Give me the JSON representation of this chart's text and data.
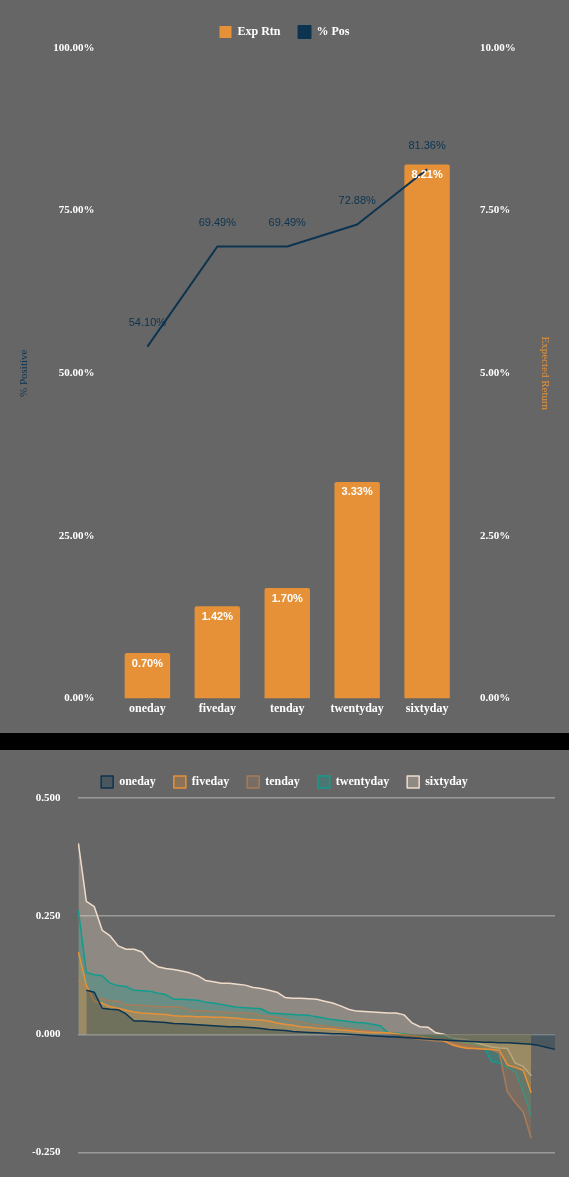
{
  "chart_data": [
    {
      "type": "bar",
      "categories": [
        "oneday",
        "fiveday",
        "tenday",
        "twentyday",
        "sixtyday"
      ],
      "series": [
        {
          "name": "Exp Rtn",
          "axis": "y2",
          "color": "#e69138",
          "values": [
            0.7,
            1.42,
            1.7,
            3.33,
            8.21
          ],
          "value_labels": [
            "0.70%",
            "1.42%",
            "1.70%",
            "3.33%",
            "8.21%"
          ]
        },
        {
          "name": "% Pos",
          "type": "line",
          "axis": "y",
          "color": "#0c3450",
          "values": [
            54.1,
            69.49,
            69.49,
            72.88,
            81.36
          ],
          "value_labels": [
            "54.10%",
            "69.49%",
            "69.49%",
            "72.88%",
            "81.36%"
          ]
        }
      ],
      "ylabel": "% Positive",
      "y2label": "Expected Return",
      "ylim": [
        0,
        100
      ],
      "yticks": [
        {
          "value": 0,
          "label": "0.00%"
        },
        {
          "value": 25,
          "label": "25.00%"
        },
        {
          "value": 50,
          "label": "50.00%"
        },
        {
          "value": 75,
          "label": "75.00%"
        },
        {
          "value": 100,
          "label": "100.00%"
        }
      ],
      "y2lim": [
        0,
        10
      ],
      "y2ticks": [
        {
          "value": 0,
          "label": "0.00%"
        },
        {
          "value": 2.5,
          "label": "2.50%"
        },
        {
          "value": 5,
          "label": "5.00%"
        },
        {
          "value": 7.5,
          "label": "7.50%"
        },
        {
          "value": 10,
          "label": "10.00%"
        }
      ],
      "legend": "top",
      "marker": "none"
    },
    {
      "type": "area",
      "categories": [
        null,
        null,
        null,
        null,
        null,
        null,
        null,
        null,
        null,
        null,
        null,
        null,
        null,
        null,
        null,
        null,
        null,
        null,
        null,
        null,
        null,
        null,
        null,
        null,
        null,
        null,
        null,
        null,
        null,
        null,
        null,
        null,
        null,
        null,
        null,
        null,
        null,
        null,
        null,
        null,
        null,
        null,
        null,
        null,
        null,
        null,
        null,
        null,
        null,
        null,
        null,
        null,
        null,
        null,
        null,
        null,
        null,
        null,
        null,
        null,
        null
      ],
      "series": [
        {
          "name": "oneday",
          "color": "#0c3450",
          "values": [
            null,
            0.093,
            0.089,
            0.055,
            0.053,
            0.052,
            0.043,
            0.028,
            0.028,
            0.027,
            0.026,
            0.025,
            0.023,
            0.022,
            0.021,
            0.02,
            0.019,
            0.018,
            0.017,
            0.016,
            0.016,
            0.015,
            0.014,
            0.012,
            0.01,
            0.009,
            0.008,
            0.006,
            0.005,
            0.004,
            0.003,
            0.002,
            0.001,
            0.001,
            0.0,
            -0.001,
            -0.002,
            -0.003,
            -0.004,
            -0.005,
            -0.006,
            -0.007,
            -0.008,
            -0.009,
            -0.01,
            -0.011,
            -0.012,
            -0.013,
            -0.014,
            -0.015,
            -0.016,
            -0.017,
            -0.017,
            -0.018,
            -0.018,
            -0.019,
            -0.02,
            -0.021,
            -0.024,
            -0.028,
            -0.032
          ]
        },
        {
          "name": "fiveday",
          "color": "#e69138",
          "values": [
            0.174,
            0.104,
            0.07,
            0.066,
            0.058,
            0.055,
            0.051,
            0.047,
            0.045,
            0.044,
            0.043,
            0.042,
            0.039,
            0.038,
            0.038,
            0.037,
            0.037,
            0.036,
            0.036,
            0.035,
            0.034,
            0.032,
            0.031,
            0.03,
            0.028,
            0.024,
            0.021,
            0.019,
            0.016,
            0.015,
            0.013,
            0.012,
            0.011,
            0.009,
            0.008,
            0.006,
            0.005,
            0.004,
            0.004,
            0.003,
            0.001,
            -0.001,
            -0.003,
            -0.005,
            -0.008,
            -0.01,
            -0.014,
            -0.022,
            -0.027,
            -0.03,
            -0.03,
            -0.031,
            -0.032,
            -0.034,
            -0.065,
            -0.07,
            -0.076,
            -0.124,
            null,
            null,
            null
          ]
        },
        {
          "name": "tenday",
          "color": "#a67c5b",
          "values": [
            0.114,
            0.097,
            0.081,
            0.074,
            0.071,
            0.07,
            0.062,
            0.062,
            0.061,
            0.06,
            0.059,
            0.058,
            0.058,
            0.057,
            0.051,
            0.05,
            0.049,
            0.048,
            0.047,
            0.046,
            0.045,
            0.045,
            0.044,
            0.039,
            0.038,
            0.036,
            0.033,
            0.028,
            0.026,
            0.022,
            0.02,
            0.018,
            0.016,
            0.014,
            0.012,
            0.01,
            0.008,
            0.006,
            0.004,
            0.001,
            0.0,
            -0.004,
            -0.008,
            -0.011,
            -0.012,
            -0.014,
            -0.015,
            -0.02,
            -0.025,
            -0.028,
            -0.03,
            -0.031,
            -0.032,
            -0.04,
            -0.122,
            -0.145,
            -0.164,
            -0.22,
            null,
            null,
            null
          ]
        },
        {
          "name": "twentyday",
          "color": "#129c8c",
          "values": [
            0.262,
            0.131,
            0.126,
            0.124,
            0.108,
            0.103,
            0.101,
            0.093,
            0.092,
            0.091,
            0.087,
            0.084,
            0.074,
            0.074,
            0.073,
            0.072,
            0.068,
            0.066,
            0.063,
            0.06,
            0.057,
            0.056,
            0.055,
            0.054,
            0.045,
            0.044,
            0.043,
            0.042,
            0.041,
            0.04,
            0.037,
            0.034,
            0.031,
            0.029,
            0.027,
            0.025,
            0.024,
            0.021,
            0.018,
            0.003,
            0.002,
            0.001,
            -0.002,
            -0.005,
            -0.005,
            -0.006,
            -0.006,
            -0.01,
            -0.015,
            -0.019,
            -0.022,
            -0.026,
            -0.057,
            -0.061,
            -0.07,
            -0.08,
            -0.122,
            -0.172,
            null,
            null,
            null
          ]
        },
        {
          "name": "sixtyday",
          "color": "#efdccb",
          "values": [
            0.404,
            0.281,
            0.27,
            0.22,
            0.208,
            0.187,
            0.18,
            0.18,
            0.174,
            0.154,
            0.143,
            0.139,
            0.137,
            0.134,
            0.13,
            0.124,
            0.114,
            0.111,
            0.108,
            0.108,
            0.106,
            0.104,
            0.099,
            0.097,
            0.093,
            0.089,
            0.078,
            0.076,
            0.076,
            0.075,
            0.074,
            0.07,
            0.066,
            0.06,
            0.053,
            0.049,
            0.048,
            0.047,
            0.046,
            0.045,
            0.045,
            0.041,
            0.024,
            0.016,
            0.015,
            0.003,
            0.0,
            -0.008,
            -0.01,
            -0.012,
            -0.018,
            -0.022,
            -0.027,
            -0.029,
            -0.03,
            -0.061,
            -0.068,
            -0.088,
            null,
            null,
            null
          ]
        }
      ],
      "ylim": [
        -0.25,
        0.5
      ],
      "yticks": [
        {
          "value": -0.25,
          "label": "-0.250"
        },
        {
          "value": 0,
          "label": "0.000"
        },
        {
          "value": 0.25,
          "label": "0.250"
        },
        {
          "value": 0.5,
          "label": "0.500"
        }
      ],
      "grid": "y",
      "legend": "top",
      "tick_labels": "y",
      "marker": "none"
    }
  ]
}
